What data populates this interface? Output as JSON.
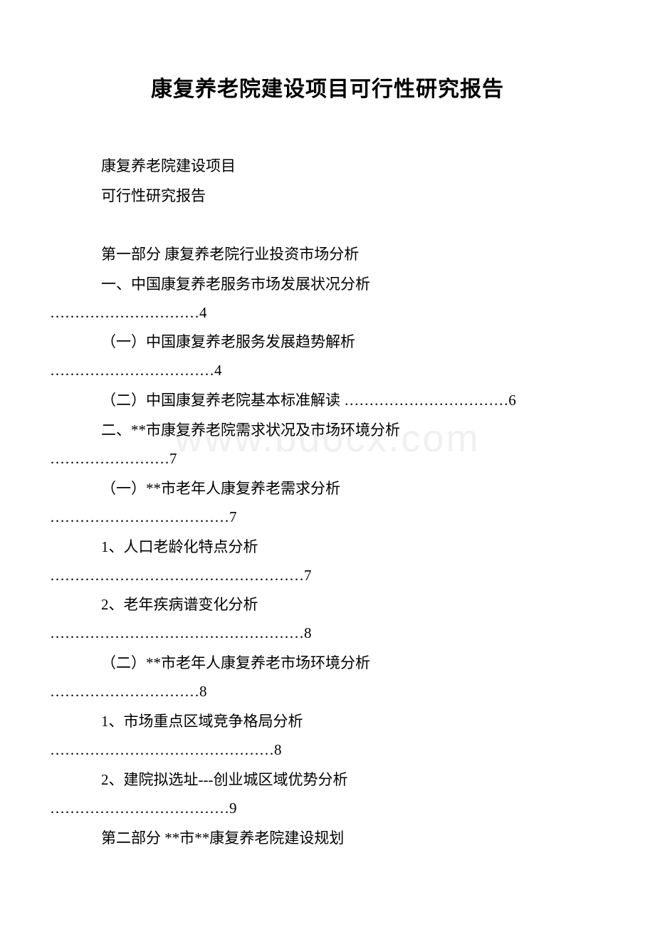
{
  "title": "康复养老院建设项目可行性研究报告",
  "subtitle1": "康复养老院建设项目",
  "subtitle2": "可行性研究报告",
  "watermark": "www.bdocx.com",
  "toc": {
    "part1_heading": "第一部分 康复养老院行业投资市场分析",
    "item1": {
      "line1": "一、中国康复养老服务市场发展状况分析",
      "line2": "…………………………4"
    },
    "item2": {
      "line1": "（一）中国康复养老服务发展趋势解析",
      "line2": "……………………………4"
    },
    "item3": "（二）中国康复养老院基本标准解读 ……………………………6",
    "item4": {
      "line1": "二、**市康复养老院需求状况及市场环境分析",
      "line2": "……………………7"
    },
    "item5": {
      "line1": "（一）**市老年人康复养老需求分析",
      "line2": "………………………………7"
    },
    "item6": {
      "line1": "1、人口老龄化特点分析",
      "line2": "……………………………………………7"
    },
    "item7": {
      "line1": "2、老年疾病谱变化分析",
      "line2": "……………………………………………8"
    },
    "item8": {
      "line1": "（二）**市老年人康复养老市场环境分析",
      "line2": "…………………………8"
    },
    "item9": {
      "line1": "1、市场重点区域竞争格局分析",
      "line2": "………………………………………8"
    },
    "item10": {
      "line1": "2、建院拟选址---创业城区域优势分析",
      "line2": "………………………………9"
    },
    "part2_heading": "第二部分 **市**康复养老院建设规划"
  }
}
